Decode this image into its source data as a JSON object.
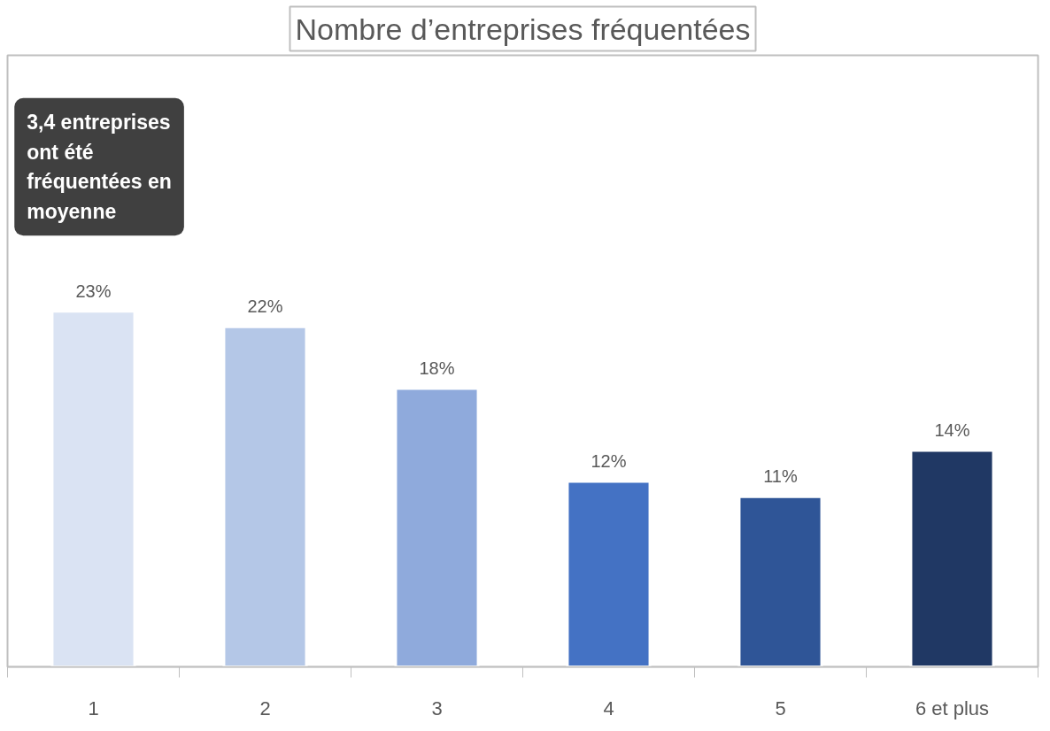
{
  "chart_data": {
    "type": "bar",
    "title": "Nombre d’entreprises fréquentées",
    "categories": [
      "1",
      "2",
      "3",
      "4",
      "5",
      "6 et plus"
    ],
    "values": [
      23,
      22,
      18,
      12,
      11,
      14
    ],
    "value_labels": [
      "23%",
      "22%",
      "18%",
      "12%",
      "11%",
      "14%"
    ],
    "colors": [
      "#dae3f3",
      "#b4c7e7",
      "#8faadc",
      "#4472c4",
      "#2f5597",
      "#203864"
    ],
    "annotations": [
      "3,4 entreprises ont été fréquentées en moyenne"
    ],
    "grid": false
  }
}
